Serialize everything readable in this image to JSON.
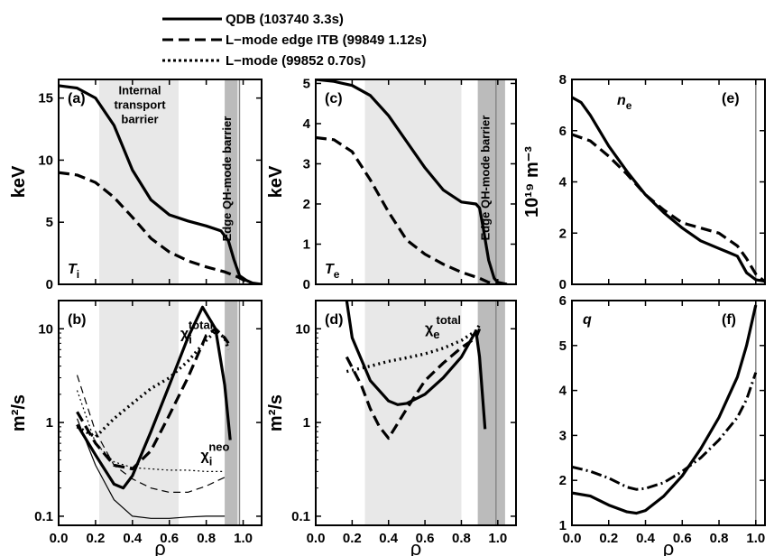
{
  "legend": [
    {
      "label": "QDB (103740 3.3s)",
      "style": "solid"
    },
    {
      "label": "L−mode edge ITB (99849 1.12s)",
      "style": "dashed"
    },
    {
      "label": "L−mode (99852 0.70s)",
      "style": "dotted"
    }
  ],
  "chart_data": [
    {
      "id": "a",
      "type": "line",
      "panel_label": "(a)",
      "symbol": "T",
      "symbol_sub": "i",
      "ylabel": "keV",
      "xlim": [
        0,
        1.1
      ],
      "ylim": [
        0,
        16.5
      ],
      "yscale": "linear",
      "yticks": [
        "0",
        "5",
        "10",
        "15"
      ],
      "yticks_values": [
        0,
        5,
        10,
        15
      ],
      "xticks": [],
      "xticks_values": [],
      "bands": [
        {
          "x0": 0.22,
          "x1": 0.65,
          "shade": "#e8e8e8"
        },
        {
          "x0": 0.9,
          "x1": 0.97,
          "shade": "#bbbbbb"
        }
      ],
      "vline": 0.98,
      "annotations": [
        {
          "lines": [
            "Internal",
            "transport",
            "barrier"
          ],
          "x": 0.44,
          "y": 15.3,
          "rotate": 0
        },
        {
          "lines": [
            "Edge QH-mode barrier"
          ],
          "x": 0.935,
          "y": 8.5,
          "rotate": -90
        }
      ],
      "series": [
        {
          "style": "solid",
          "x": [
            0,
            0.1,
            0.2,
            0.3,
            0.4,
            0.5,
            0.6,
            0.7,
            0.8,
            0.88,
            0.92,
            0.95,
            0.98,
            1.02,
            1.05,
            1.1
          ],
          "y": [
            16,
            15.8,
            15,
            12.8,
            9.2,
            6.8,
            5.6,
            5.1,
            4.7,
            4.3,
            3.5,
            2.0,
            0.7,
            0.3,
            0.1,
            0
          ]
        },
        {
          "style": "dashed",
          "x": [
            0,
            0.1,
            0.2,
            0.3,
            0.4,
            0.5,
            0.6,
            0.7,
            0.8,
            0.9,
            0.97,
            1.02,
            1.05
          ],
          "y": [
            9,
            8.8,
            8.2,
            7.0,
            5.4,
            3.7,
            2.6,
            1.9,
            1.4,
            1.0,
            0.6,
            0.2,
            0
          ]
        }
      ]
    },
    {
      "id": "c",
      "type": "line",
      "panel_label": "(c)",
      "symbol": "T",
      "symbol_sub": "e",
      "ylabel": "keV",
      "xlim": [
        0,
        1.1
      ],
      "ylim": [
        0,
        5.1
      ],
      "yscale": "linear",
      "yticks": [
        "0",
        "1",
        "2",
        "3",
        "4",
        "5"
      ],
      "yticks_values": [
        0,
        1,
        2,
        3,
        4,
        5
      ],
      "xticks": [],
      "xticks_values": [],
      "bands": [
        {
          "x0": 0.27,
          "x1": 0.8,
          "shade": "#e8e8e8"
        },
        {
          "x0": 0.89,
          "x1": 1.04,
          "shade": "#bbbbbb"
        }
      ],
      "vline": 0.99,
      "annotations": [
        {
          "lines": [
            "Edge QH-mode barrier"
          ],
          "x": 0.955,
          "y": 2.65,
          "rotate": -90
        }
      ],
      "series": [
        {
          "style": "solid",
          "x": [
            0,
            0.1,
            0.2,
            0.3,
            0.4,
            0.5,
            0.6,
            0.7,
            0.8,
            0.88,
            0.9,
            0.92,
            0.95,
            0.98,
            1.0,
            1.05
          ],
          "y": [
            5.1,
            5.05,
            4.95,
            4.7,
            4.2,
            3.55,
            2.9,
            2.35,
            2.05,
            2.0,
            1.9,
            1.4,
            0.6,
            0.15,
            0.05,
            0
          ]
        },
        {
          "style": "dashed",
          "x": [
            0,
            0.1,
            0.2,
            0.3,
            0.4,
            0.5,
            0.6,
            0.7,
            0.8,
            0.9,
            0.95,
            1.0
          ],
          "y": [
            3.65,
            3.6,
            3.3,
            2.6,
            1.8,
            1.1,
            0.75,
            0.5,
            0.3,
            0.15,
            0.05,
            0
          ]
        }
      ]
    },
    {
      "id": "e",
      "type": "line",
      "panel_label": "(e)",
      "symbol": "n",
      "symbol_sub": "e",
      "ylabel": "10¹⁹ m⁻³",
      "xlim": [
        0,
        1.05
      ],
      "ylim": [
        0,
        8
      ],
      "yscale": "linear",
      "yticks": [
        "0",
        "2",
        "4",
        "6",
        "8"
      ],
      "yticks_values": [
        0,
        2,
        4,
        6,
        8
      ],
      "xticks": [],
      "xticks_values": [],
      "bands": [],
      "vline": 1.0,
      "annotations": [],
      "series": [
        {
          "style": "solid",
          "x": [
            0,
            0.05,
            0.1,
            0.2,
            0.3,
            0.4,
            0.5,
            0.6,
            0.7,
            0.8,
            0.85,
            0.9,
            0.95,
            1.0,
            1.05
          ],
          "y": [
            7.3,
            7.1,
            6.6,
            5.4,
            4.4,
            3.5,
            2.8,
            2.2,
            1.7,
            1.4,
            1.25,
            1.1,
            0.45,
            0.18,
            0.12
          ]
        },
        {
          "style": "dashed",
          "x": [
            0,
            0.1,
            0.2,
            0.3,
            0.4,
            0.5,
            0.6,
            0.7,
            0.8,
            0.9,
            0.95,
            1.0,
            1.05
          ],
          "y": [
            5.85,
            5.6,
            5.0,
            4.3,
            3.5,
            2.9,
            2.4,
            2.2,
            2.0,
            1.5,
            1.0,
            0.4,
            0.1
          ]
        }
      ]
    },
    {
      "id": "b",
      "type": "line",
      "panel_label": "(b)",
      "symbol": "",
      "ylabel": "m²/s",
      "xlabel": "ρ",
      "xlim": [
        0,
        1.1
      ],
      "ylim": [
        0.08,
        20
      ],
      "yscale": "log",
      "yticks": [
        "0.1",
        "1",
        "10"
      ],
      "yticks_values": [
        0.1,
        1,
        10
      ],
      "xticks": [
        "0.0",
        "0.2",
        "0.4",
        "0.6",
        "0.8",
        "1.0"
      ],
      "xticks_values": [
        0,
        0.2,
        0.4,
        0.6,
        0.8,
        1.0
      ],
      "bands": [
        {
          "x0": 0.22,
          "x1": 0.65,
          "shade": "#e8e8e8"
        },
        {
          "x0": 0.9,
          "x1": 0.97,
          "shade": "#bbbbbb"
        }
      ],
      "vline": 0.98,
      "chi_labels": [
        {
          "base": "χ",
          "sub": "i",
          "sup": "total",
          "x": 0.66,
          "y": 8
        },
        {
          "base": "χ",
          "sub": "i",
          "sup": "neo",
          "x": 0.77,
          "y": 0.4
        }
      ],
      "series": [
        {
          "style": "solid",
          "x": [
            0.1,
            0.2,
            0.3,
            0.35,
            0.4,
            0.5,
            0.6,
            0.7,
            0.78,
            0.85,
            0.9,
            0.93
          ],
          "y": [
            0.95,
            0.45,
            0.22,
            0.2,
            0.27,
            0.8,
            2.5,
            8,
            17,
            10,
            2.5,
            0.65
          ]
        },
        {
          "style": "dashed",
          "x": [
            0.1,
            0.2,
            0.3,
            0.4,
            0.5,
            0.6,
            0.7,
            0.8,
            0.85,
            0.9,
            0.92
          ],
          "y": [
            1.3,
            0.6,
            0.35,
            0.32,
            0.5,
            1.2,
            3.0,
            8.5,
            10,
            8,
            7
          ]
        },
        {
          "style": "dotted",
          "x": [
            0.1,
            0.2,
            0.3,
            0.4,
            0.5,
            0.6,
            0.7,
            0.8,
            0.85,
            0.9,
            0.92
          ],
          "y": [
            0.9,
            0.7,
            1.1,
            1.6,
            2.3,
            3.0,
            4.5,
            7.5,
            9.5,
            8,
            6
          ]
        },
        {
          "style": "thin-solid",
          "x": [
            0.1,
            0.2,
            0.3,
            0.4,
            0.5,
            0.6,
            0.7,
            0.8,
            0.9
          ],
          "y": [
            1.1,
            0.35,
            0.15,
            0.1,
            0.095,
            0.095,
            0.098,
            0.1,
            0.1
          ]
        },
        {
          "style": "thin-dashed",
          "x": [
            0.1,
            0.2,
            0.3,
            0.4,
            0.5,
            0.6,
            0.7,
            0.8,
            0.9
          ],
          "y": [
            3.2,
            0.8,
            0.35,
            0.25,
            0.2,
            0.18,
            0.18,
            0.21,
            0.26
          ]
        },
        {
          "style": "thin-dotted",
          "x": [
            0.1,
            0.2,
            0.3,
            0.4,
            0.5,
            0.6,
            0.7,
            0.8,
            0.9
          ],
          "y": [
            2.2,
            0.6,
            0.38,
            0.33,
            0.32,
            0.31,
            0.31,
            0.3,
            0.3
          ]
        }
      ]
    },
    {
      "id": "d",
      "type": "line",
      "panel_label": "(d)",
      "symbol": "",
      "ylabel": "m²/s",
      "xlabel": "ρ",
      "xlim": [
        0,
        1.1
      ],
      "ylim": [
        0.08,
        20
      ],
      "yscale": "log",
      "yticks": [
        "0.1",
        "1",
        "10"
      ],
      "yticks_values": [
        0.1,
        1,
        10
      ],
      "xticks": [
        "0.0",
        "0.2",
        "0.4",
        "0.6",
        "0.8",
        "1.0"
      ],
      "xticks_values": [
        0,
        0.2,
        0.4,
        0.6,
        0.8,
        1.0
      ],
      "bands": [
        {
          "x0": 0.27,
          "x1": 0.8,
          "shade": "#e8e8e8"
        },
        {
          "x0": 0.89,
          "x1": 1.04,
          "shade": "#bbbbbb"
        }
      ],
      "vline": 0.99,
      "chi_labels": [
        {
          "base": "χ",
          "sub": "e",
          "sup": "total",
          "x": 0.6,
          "y": 9
        }
      ],
      "series": [
        {
          "style": "solid",
          "x": [
            0.17,
            0.2,
            0.3,
            0.4,
            0.45,
            0.5,
            0.6,
            0.7,
            0.8,
            0.88,
            0.9,
            0.93
          ],
          "y": [
            20,
            8,
            2.8,
            1.7,
            1.55,
            1.6,
            2.0,
            3.0,
            5.0,
            9.5,
            5,
            0.85
          ]
        },
        {
          "style": "dashed",
          "x": [
            0.17,
            0.25,
            0.3,
            0.35,
            0.4,
            0.5,
            0.6,
            0.7,
            0.8,
            0.88,
            0.9
          ],
          "y": [
            5.0,
            2.5,
            1.4,
            0.9,
            0.68,
            1.4,
            2.8,
            4.3,
            6.3,
            8,
            10
          ]
        },
        {
          "style": "dotted",
          "x": [
            0.17,
            0.3,
            0.4,
            0.5,
            0.6,
            0.7,
            0.8,
            0.88,
            0.9
          ],
          "y": [
            3.5,
            4.0,
            4.5,
            4.9,
            5.4,
            6.2,
            7.5,
            9.5,
            11
          ]
        }
      ]
    },
    {
      "id": "f",
      "type": "line",
      "panel_label": "(f)",
      "symbol": "q",
      "ylabel": "",
      "xlabel": "ρ",
      "xlim": [
        0,
        1.05
      ],
      "ylim": [
        1,
        6
      ],
      "yscale": "linear",
      "yticks": [
        "1",
        "2",
        "3",
        "4",
        "5",
        "6"
      ],
      "yticks_values": [
        1,
        2,
        3,
        4,
        5,
        6
      ],
      "xticks": [
        "0.0",
        "0.2",
        "0.4",
        "0.6",
        "0.8",
        "1.0"
      ],
      "xticks_values": [
        0,
        0.2,
        0.4,
        0.6,
        0.8,
        1.0
      ],
      "bands": [],
      "vline": 1.0,
      "series": [
        {
          "style": "solid",
          "x": [
            0,
            0.1,
            0.2,
            0.3,
            0.35,
            0.4,
            0.5,
            0.6,
            0.7,
            0.8,
            0.9,
            0.95,
            1.0
          ],
          "y": [
            1.72,
            1.65,
            1.45,
            1.3,
            1.27,
            1.33,
            1.65,
            2.1,
            2.7,
            3.4,
            4.3,
            5.0,
            5.9
          ]
        },
        {
          "style": "dashdot",
          "x": [
            0,
            0.1,
            0.2,
            0.3,
            0.35,
            0.4,
            0.5,
            0.6,
            0.7,
            0.8,
            0.9,
            0.95,
            1.0
          ],
          "y": [
            2.3,
            2.2,
            2.05,
            1.85,
            1.8,
            1.82,
            1.95,
            2.2,
            2.5,
            2.9,
            3.4,
            3.8,
            4.4
          ]
        }
      ]
    }
  ]
}
